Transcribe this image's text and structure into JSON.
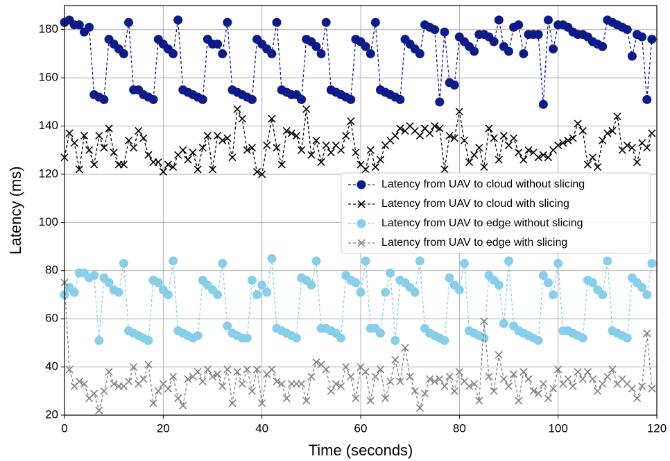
{
  "chart_data": {
    "type": "line",
    "xlabel": "Time (seconds)",
    "ylabel": "Latency (ms)",
    "x": [
      0,
      1,
      2,
      3,
      4,
      5,
      6,
      7,
      8,
      9,
      10,
      11,
      12,
      13,
      14,
      15,
      16,
      17,
      18,
      19,
      20,
      21,
      22,
      23,
      24,
      25,
      26,
      27,
      28,
      29,
      30,
      31,
      32,
      33,
      34,
      35,
      36,
      37,
      38,
      39,
      40,
      41,
      42,
      43,
      44,
      45,
      46,
      47,
      48,
      49,
      50,
      51,
      52,
      53,
      54,
      55,
      56,
      57,
      58,
      59,
      60,
      61,
      62,
      63,
      64,
      65,
      66,
      67,
      68,
      69,
      70,
      71,
      72,
      73,
      74,
      75,
      76,
      77,
      78,
      79,
      80,
      81,
      82,
      83,
      84,
      85,
      86,
      87,
      88,
      89,
      90,
      91,
      92,
      93,
      94,
      95,
      96,
      97,
      98,
      99,
      100,
      101,
      102,
      103,
      104,
      105,
      106,
      107,
      108,
      109,
      110,
      111,
      112,
      113,
      114,
      115,
      116,
      117,
      118,
      119
    ],
    "series": [
      {
        "name": "Latency from UAV to cloud without slicing",
        "color": "#0d1a8a",
        "marker": "circle",
        "values": [
          183,
          184,
          182,
          182,
          179,
          181,
          153,
          152,
          151,
          176,
          174,
          172,
          170,
          183,
          155,
          155,
          153,
          152,
          151,
          176,
          174,
          172,
          170,
          184,
          155,
          154,
          153,
          152,
          151,
          176,
          174,
          174,
          170,
          183,
          155,
          154,
          153,
          152,
          151,
          176,
          174,
          172,
          170,
          183,
          155,
          154,
          153,
          153,
          151,
          176,
          175,
          173,
          170,
          183,
          155,
          154,
          153,
          152,
          151,
          176,
          175,
          173,
          170,
          183,
          155,
          154,
          153,
          152,
          151,
          176,
          174,
          172,
          170,
          182,
          181,
          180,
          150,
          179,
          158,
          157,
          177,
          175,
          173,
          171,
          178,
          178,
          177,
          175,
          184,
          173,
          171,
          181,
          182,
          170,
          178,
          178,
          178,
          149,
          184,
          172,
          182,
          182,
          181,
          179,
          178,
          178,
          177,
          175,
          174,
          173,
          184,
          183,
          182,
          181,
          180,
          169,
          178,
          177,
          151,
          176
        ]
      },
      {
        "name": "Latency from UAV to cloud with slicing",
        "color": "#000000",
        "marker": "x",
        "values": [
          127,
          137,
          133,
          122,
          136,
          130,
          124,
          136,
          131,
          139,
          129,
          124,
          124,
          134,
          131,
          138,
          135,
          128,
          125,
          125,
          121,
          124,
          123,
          128,
          130,
          126,
          129,
          122,
          131,
          136,
          122,
          136,
          134,
          135,
          127,
          147,
          143,
          130,
          131,
          121,
          120,
          132,
          143,
          131,
          124,
          138,
          137,
          136,
          130,
          147,
          128,
          134,
          125,
          132,
          129,
          132,
          130,
          136,
          142,
          129,
          124,
          122,
          130,
          123,
          126,
          132,
          134,
          136,
          139,
          138,
          140,
          138,
          136,
          139,
          137,
          140,
          139,
          122,
          136,
          135,
          146,
          134,
          125,
          128,
          131,
          123,
          139,
          135,
          126,
          136,
          132,
          135,
          129,
          126,
          130,
          129,
          127,
          128,
          127,
          130,
          132,
          133,
          134,
          135,
          141,
          138,
          124,
          127,
          123,
          134,
          137,
          138,
          144,
          130,
          132,
          131,
          125,
          133,
          131,
          137
        ]
      },
      {
        "name": "Latency from UAV to edge without slicing",
        "color": "#87ceeb",
        "marker": "circle",
        "values": [
          70,
          73,
          71,
          79,
          79,
          77,
          78,
          51,
          77,
          75,
          72,
          71,
          83,
          55,
          54,
          53,
          52,
          51,
          76,
          75,
          72,
          70,
          84,
          55,
          54,
          53,
          52,
          53,
          76,
          74,
          72,
          70,
          83,
          57,
          54,
          53,
          52,
          52,
          76,
          70,
          74,
          71,
          85,
          56,
          55,
          54,
          53,
          52,
          77,
          76,
          74,
          84,
          56,
          56,
          55,
          54,
          52,
          78,
          76,
          75,
          71,
          84,
          56,
          56,
          54,
          71,
          79,
          51,
          76,
          75,
          73,
          71,
          84,
          56,
          54,
          53,
          52,
          51,
          77,
          74,
          72,
          83,
          55,
          54,
          53,
          52,
          78,
          76,
          74,
          58,
          84,
          57,
          55,
          54,
          53,
          52,
          51,
          78,
          75,
          70,
          83,
          55,
          55,
          54,
          53,
          52,
          76,
          75,
          72,
          70,
          84,
          55,
          54,
          53,
          52,
          77,
          75,
          73,
          70,
          83
        ]
      },
      {
        "name": "Latency from UAV to edge with slicing",
        "color": "#808080",
        "marker": "x",
        "values": [
          75,
          39,
          32,
          34,
          33,
          27,
          29,
          22,
          30,
          38,
          33,
          32,
          32,
          34,
          40,
          33,
          35,
          41,
          25,
          30,
          33,
          31,
          36,
          27,
          24,
          35,
          36,
          38,
          34,
          39,
          36,
          37,
          32,
          39,
          25,
          38,
          33,
          39,
          30,
          39,
          25,
          37,
          39,
          34,
          33,
          27,
          33,
          33,
          33,
          26,
          36,
          42,
          41,
          39,
          30,
          33,
          32,
          40,
          36,
          27,
          40,
          38,
          26,
          36,
          39,
          27,
          34,
          43,
          34,
          48,
          36,
          30,
          23,
          29,
          35,
          34,
          35,
          32,
          36,
          30,
          38,
          34,
          32,
          33,
          26,
          59,
          36,
          30,
          45,
          35,
          32,
          37,
          26,
          38,
          35,
          30,
          29,
          33,
          27,
          31,
          39,
          33,
          35,
          32,
          38,
          35,
          38,
          35,
          30,
          33,
          36,
          39,
          33,
          35,
          33,
          31,
          27,
          32,
          54,
          31
        ]
      }
    ],
    "xlim": [
      0,
      120
    ],
    "xticks": [
      0,
      20,
      40,
      60,
      80,
      100,
      120
    ],
    "ylim": [
      20,
      190
    ],
    "yticks": [
      20,
      40,
      60,
      80,
      100,
      120,
      140,
      160,
      180
    ],
    "grid": true,
    "legend": "center right"
  }
}
